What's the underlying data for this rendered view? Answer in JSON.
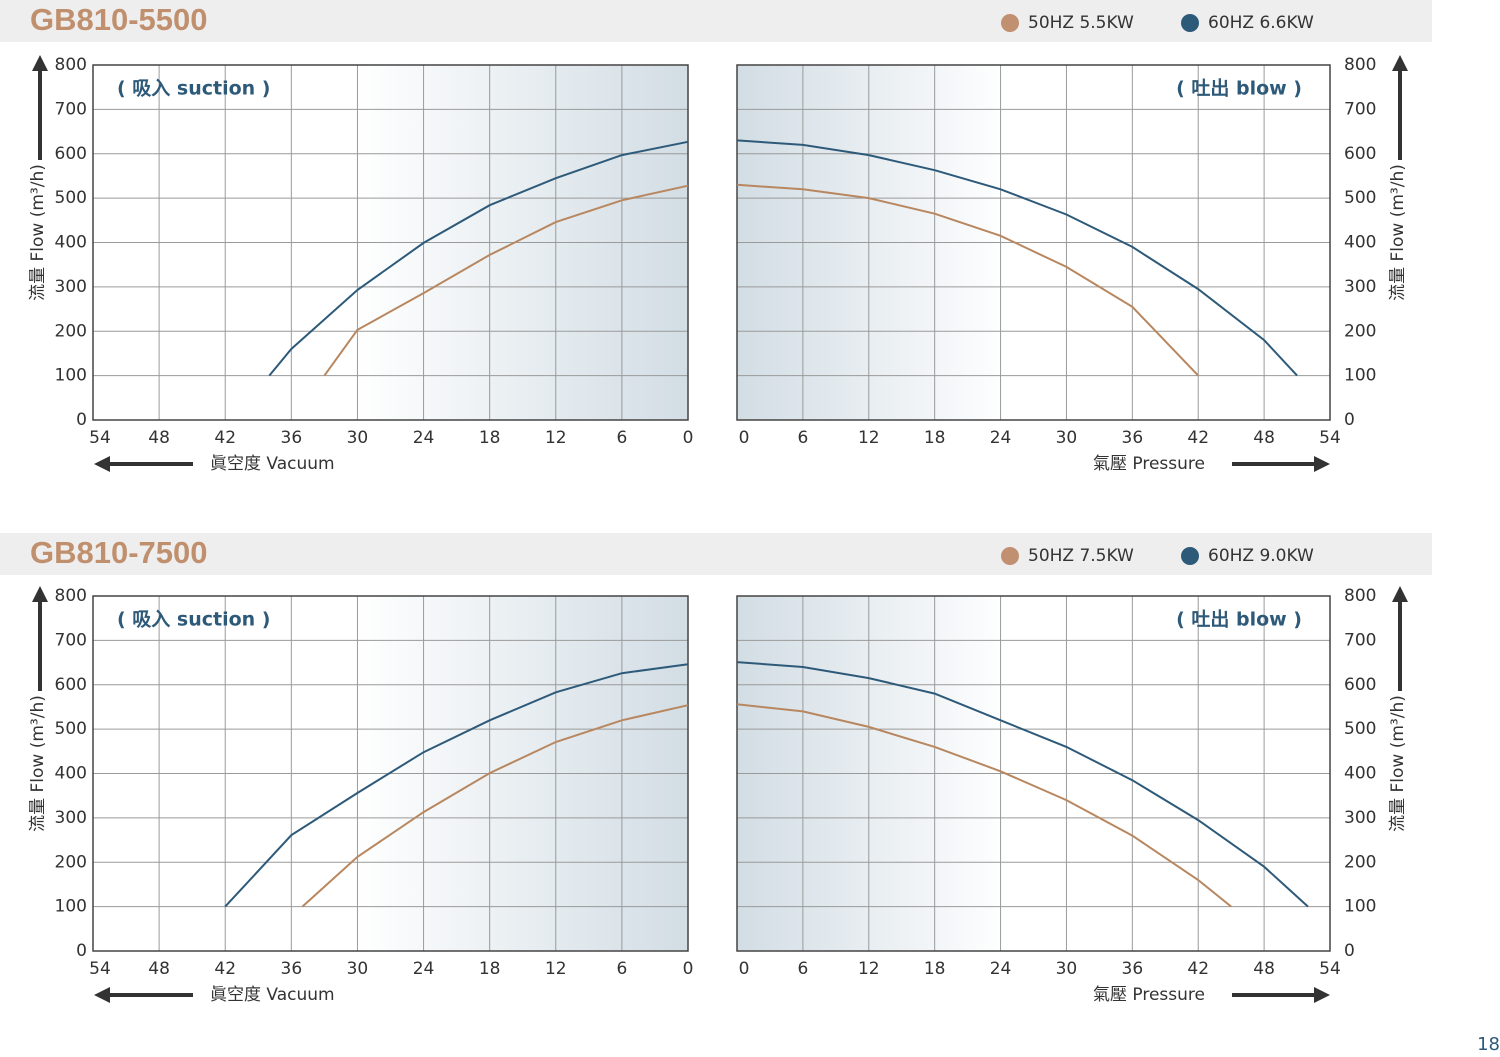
{
  "page_number": "18",
  "chart_data": [
    {
      "type": "line",
      "title": "GB810-5500",
      "annotation": "( 吸入 suction )",
      "x_label": "眞空度  Vacuum",
      "y_label": "流量 Flow (m³/h)",
      "xlim": [
        54,
        0
      ],
      "xticks": [
        54,
        48,
        42,
        36,
        30,
        24,
        18,
        12,
        6,
        0
      ],
      "ylim": [
        0,
        800
      ],
      "yticks": [
        0,
        100,
        200,
        300,
        400,
        500,
        600,
        700,
        800
      ],
      "grid": true,
      "series": [
        {
          "name": "50HZ  5.5KW",
          "color": "#b8875f",
          "x": [
            33,
            30,
            24,
            18,
            12,
            6,
            0
          ],
          "values": [
            100,
            203,
            286,
            372,
            446,
            495,
            528
          ]
        },
        {
          "name": "60HZ  6.6KW",
          "color": "#2e5a7a",
          "x": [
            38,
            36,
            30,
            24,
            18,
            12,
            6,
            0
          ],
          "values": [
            100,
            160,
            293,
            399,
            484,
            545,
            597,
            627
          ]
        }
      ]
    },
    {
      "type": "line",
      "annotation": "( 吐出 blow )",
      "x_label": "氣壓  Pressure",
      "y_label": "流量 Flow (m³/h)",
      "xlim": [
        0,
        54
      ],
      "xticks": [
        0,
        6,
        12,
        18,
        24,
        30,
        36,
        42,
        48,
        54
      ],
      "ylim": [
        0,
        800
      ],
      "yticks": [
        0,
        100,
        200,
        300,
        400,
        500,
        600,
        700,
        800
      ],
      "grid": true,
      "series": [
        {
          "color": "#b8875f",
          "x": [
            0,
            6,
            12,
            18,
            24,
            30,
            36,
            42
          ],
          "values": [
            530,
            520,
            500,
            465,
            415,
            345,
            255,
            100
          ]
        },
        {
          "color": "#2e5a7a",
          "x": [
            0,
            6,
            12,
            18,
            24,
            30,
            36,
            42,
            48,
            51
          ],
          "values": [
            630,
            620,
            597,
            563,
            520,
            463,
            390,
            295,
            180,
            100
          ]
        }
      ]
    },
    {
      "type": "line",
      "title": "GB810-7500",
      "annotation": "( 吸入 suction )",
      "x_label": "眞空度  Vacuum",
      "y_label": "流量 Flow (m³/h)",
      "xlim": [
        54,
        0
      ],
      "xticks": [
        54,
        48,
        42,
        36,
        30,
        24,
        18,
        12,
        6,
        0
      ],
      "ylim": [
        0,
        800
      ],
      "yticks": [
        0,
        100,
        200,
        300,
        400,
        500,
        600,
        700,
        800
      ],
      "grid": true,
      "series": [
        {
          "name": "50HZ  7.5KW",
          "color": "#b8875f",
          "x": [
            35,
            30,
            24,
            18,
            12,
            6,
            0
          ],
          "values": [
            100,
            212,
            313,
            401,
            471,
            520,
            554
          ]
        },
        {
          "name": "60HZ  9.0KW",
          "color": "#2e5a7a",
          "x": [
            42,
            36,
            30,
            24,
            18,
            12,
            6,
            0
          ],
          "values": [
            100,
            261,
            356,
            448,
            520,
            583,
            626,
            646
          ]
        }
      ]
    },
    {
      "type": "line",
      "annotation": "( 吐出 blow )",
      "x_label": "氣壓  Pressure",
      "y_label": "流量 Flow (m³/h)",
      "xlim": [
        0,
        54
      ],
      "xticks": [
        0,
        6,
        12,
        18,
        24,
        30,
        36,
        42,
        48,
        54
      ],
      "ylim": [
        0,
        800
      ],
      "yticks": [
        0,
        100,
        200,
        300,
        400,
        500,
        600,
        700,
        800
      ],
      "grid": true,
      "series": [
        {
          "color": "#b8875f",
          "x": [
            0,
            6,
            12,
            18,
            24,
            30,
            36,
            42,
            45
          ],
          "values": [
            556,
            540,
            505,
            460,
            405,
            340,
            260,
            160,
            100
          ]
        },
        {
          "color": "#2e5a7a",
          "x": [
            0,
            6,
            12,
            18,
            24,
            30,
            36,
            42,
            48,
            52
          ],
          "values": [
            651,
            640,
            615,
            580,
            520,
            460,
            385,
            295,
            190,
            100
          ]
        }
      ]
    }
  ]
}
